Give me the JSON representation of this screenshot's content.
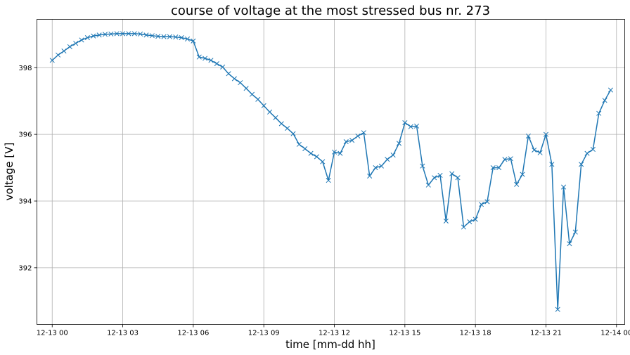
{
  "chart_data": {
    "type": "line",
    "title": "course of voltage at the most stressed bus nr. 273",
    "xlabel": "time [mm-dd hh]",
    "ylabel": "voltage [V]",
    "x_unit": "hours",
    "xlim": [
      -0.65,
      24.35
    ],
    "ylim": [
      390.3,
      399.45
    ],
    "grid": true,
    "marker": "x",
    "color": "#1f77b4",
    "xticks": [
      {
        "value": 0,
        "label": "12-13 00"
      },
      {
        "value": 3,
        "label": "12-13 03"
      },
      {
        "value": 6,
        "label": "12-13 06"
      },
      {
        "value": 9,
        "label": "12-13 09"
      },
      {
        "value": 12,
        "label": "12-13 12"
      },
      {
        "value": 15,
        "label": "12-13 15"
      },
      {
        "value": 18,
        "label": "12-13 18"
      },
      {
        "value": 21,
        "label": "12-13 21"
      },
      {
        "value": 24,
        "label": "12-14 00"
      }
    ],
    "yticks": [
      {
        "value": 392,
        "label": "392"
      },
      {
        "value": 394,
        "label": "394"
      },
      {
        "value": 396,
        "label": "396"
      },
      {
        "value": 398,
        "label": "398"
      }
    ],
    "x": [
      0,
      0.25,
      0.5,
      0.75,
      1,
      1.25,
      1.5,
      1.75,
      2,
      2.25,
      2.5,
      2.75,
      3,
      3.25,
      3.5,
      3.75,
      4,
      4.25,
      4.5,
      4.75,
      5,
      5.25,
      5.5,
      5.75,
      6,
      6.25,
      6.5,
      6.75,
      7,
      7.25,
      7.5,
      7.75,
      8,
      8.25,
      8.5,
      8.75,
      9,
      9.25,
      9.5,
      9.75,
      10,
      10.25,
      10.5,
      10.75,
      11,
      11.25,
      11.5,
      11.75,
      12,
      12.25,
      12.5,
      12.75,
      13,
      13.25,
      13.5,
      13.75,
      14,
      14.25,
      14.5,
      14.75,
      15,
      15.25,
      15.5,
      15.75,
      16,
      16.25,
      16.5,
      16.75,
      17,
      17.25,
      17.5,
      17.75,
      18,
      18.25,
      18.5,
      18.75,
      19,
      19.25,
      19.5,
      19.75,
      20,
      20.25,
      20.5,
      20.75,
      21,
      21.25,
      21.5,
      21.75,
      22,
      22.25,
      22.5,
      22.75,
      23,
      23.25,
      23.5,
      23.75
    ],
    "series": [
      {
        "values": [
          398.22,
          398.38,
          398.5,
          398.63,
          398.73,
          398.83,
          398.9,
          398.95,
          398.98,
          399.0,
          399.01,
          399.02,
          399.02,
          399.02,
          399.02,
          399.01,
          398.98,
          398.96,
          398.94,
          398.93,
          398.93,
          398.92,
          398.9,
          398.86,
          398.8,
          398.32,
          398.28,
          398.22,
          398.12,
          398.02,
          397.82,
          397.67,
          397.55,
          397.38,
          397.2,
          397.05,
          396.86,
          396.67,
          396.5,
          396.32,
          396.18,
          396.02,
          395.7,
          395.57,
          395.43,
          395.33,
          395.18,
          394.62,
          395.47,
          395.43,
          395.78,
          395.82,
          395.95,
          396.05,
          394.75,
          395.0,
          395.05,
          395.25,
          395.38,
          395.73,
          396.35,
          396.23,
          396.25,
          395.05,
          394.48,
          394.7,
          394.77,
          393.4,
          394.82,
          394.7,
          393.22,
          393.38,
          393.45,
          393.9,
          393.98,
          395.0,
          395.0,
          395.25,
          395.27,
          394.5,
          394.8,
          395.95,
          395.53,
          395.45,
          396.0,
          395.1,
          390.75,
          394.42,
          392.72,
          393.07,
          395.1,
          395.43,
          395.55,
          396.63,
          397.02,
          397.33
        ]
      }
    ]
  }
}
